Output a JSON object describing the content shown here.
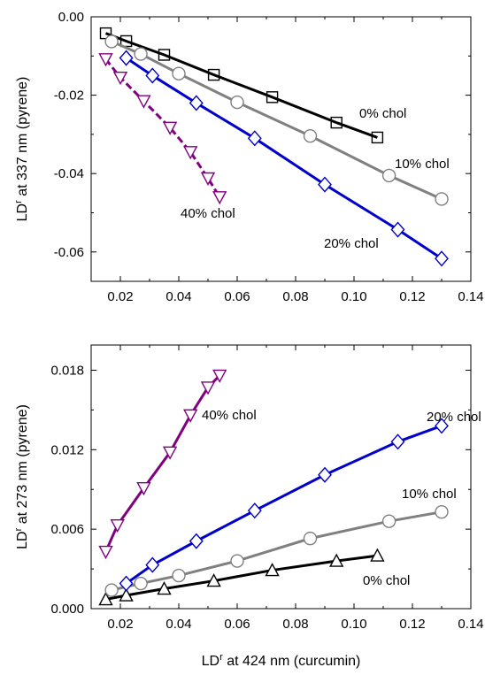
{
  "chart_data": [
    {
      "type": "line",
      "xlabel": "",
      "ylabel": "LD^r at 337 nm (pyrene)",
      "xlim": [
        0.01,
        0.14
      ],
      "ylim": [
        -0.0675,
        0.0
      ],
      "xticks": [
        "0.02",
        "0.04",
        "0.06",
        "0.08",
        "0.10",
        "0.12",
        "0.14"
      ],
      "yticks": [
        "0.00",
        "-0.02",
        "-0.04",
        "-0.06"
      ],
      "grid": false,
      "series": [
        {
          "name": "0% chol",
          "color": "#000000",
          "marker": "square",
          "dash": "solid",
          "x": [
            0.015,
            0.022,
            0.035,
            0.052,
            0.072,
            0.094,
            0.108
          ],
          "y": [
            -0.0042,
            -0.0062,
            -0.0097,
            -0.0148,
            -0.0205,
            -0.027,
            -0.0308
          ]
        },
        {
          "name": "10% chol",
          "color": "#808080",
          "marker": "circle",
          "dash": "solid",
          "x": [
            0.017,
            0.027,
            0.04,
            0.06,
            0.085,
            0.112,
            0.13
          ],
          "y": [
            -0.0063,
            -0.0095,
            -0.0145,
            -0.0218,
            -0.0304,
            -0.0405,
            -0.0465
          ]
        },
        {
          "name": "20% chol",
          "color": "#0000cc",
          "marker": "diamond",
          "dash": "solid",
          "x": [
            0.022,
            0.031,
            0.046,
            0.066,
            0.09,
            0.115,
            0.13
          ],
          "y": [
            -0.0105,
            -0.015,
            -0.022,
            -0.031,
            -0.0428,
            -0.0543,
            -0.0617
          ]
        },
        {
          "name": "40% chol",
          "color": "#800080",
          "marker": "triangle-down",
          "dash": "dashed",
          "x": [
            0.015,
            0.02,
            0.028,
            0.037,
            0.044,
            0.05,
            0.054
          ],
          "y": [
            -0.0108,
            -0.0155,
            -0.0215,
            -0.0283,
            -0.0345,
            -0.0412,
            -0.046
          ]
        }
      ],
      "annotations": [
        "0% chol",
        "10% chol",
        "20% chol",
        "40% chol"
      ]
    },
    {
      "type": "line",
      "xlabel": "LD^r at 424 nm (curcumin)",
      "ylabel": "LD^r at 273 nm (pyrene)",
      "xlim": [
        0.01,
        0.14
      ],
      "ylim": [
        0.0,
        0.0199
      ],
      "xticks": [
        "0.02",
        "0.04",
        "0.06",
        "0.08",
        "0.10",
        "0.12",
        "0.14"
      ],
      "yticks": [
        "0.000",
        "0.006",
        "0.012",
        "0.018"
      ],
      "grid": false,
      "series": [
        {
          "name": "0% chol",
          "color": "#000000",
          "marker": "triangle-up",
          "dash": "solid",
          "x": [
            0.015,
            0.022,
            0.035,
            0.052,
            0.072,
            0.094,
            0.108
          ],
          "y": [
            0.0007,
            0.001,
            0.0015,
            0.0021,
            0.0029,
            0.0036,
            0.004
          ]
        },
        {
          "name": "10% chol",
          "color": "#808080",
          "marker": "circle",
          "dash": "solid",
          "x": [
            0.017,
            0.027,
            0.04,
            0.06,
            0.085,
            0.112,
            0.13
          ],
          "y": [
            0.0014,
            0.0019,
            0.0025,
            0.0036,
            0.0053,
            0.0066,
            0.0073
          ]
        },
        {
          "name": "20% chol",
          "color": "#0000cc",
          "marker": "diamond",
          "dash": "solid",
          "x": [
            0.022,
            0.031,
            0.046,
            0.066,
            0.09,
            0.115,
            0.13
          ],
          "y": [
            0.0019,
            0.0033,
            0.0051,
            0.0074,
            0.0101,
            0.0126,
            0.0138
          ]
        },
        {
          "name": "40% chol",
          "color": "#800080",
          "marker": "triangle-down",
          "dash": "solid",
          "x": [
            0.015,
            0.019,
            0.028,
            0.037,
            0.044,
            0.05,
            0.054
          ],
          "y": [
            0.0043,
            0.0063,
            0.0091,
            0.0118,
            0.0146,
            0.0167,
            0.0176
          ]
        }
      ],
      "annotations": [
        "40% chol",
        "20% chol",
        "10% chol",
        "0% chol"
      ]
    }
  ]
}
